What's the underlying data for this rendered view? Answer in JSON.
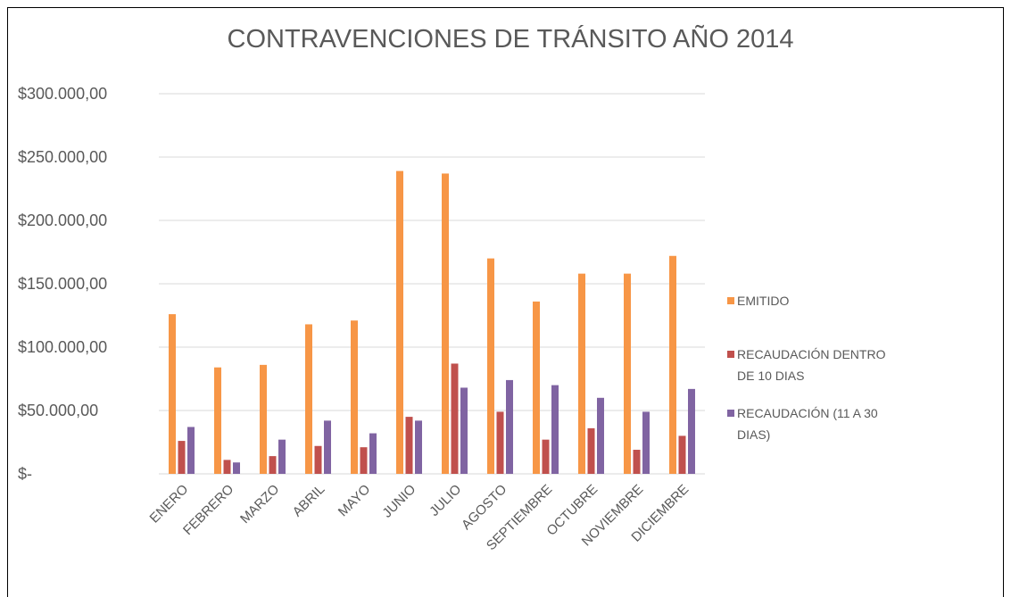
{
  "chart_data": {
    "type": "bar",
    "title": "CONTRAVENCIONES DE TRÁNSITO AÑO 2014",
    "categories": [
      "ENERO",
      "FEBRERO",
      "MARZO",
      "ABRIL",
      "MAYO",
      "JUNIO",
      "JULIO",
      "AGOSTO",
      "SEPTIEMBRE",
      "OCTUBRE",
      "NOVIEMBRE",
      "DICIEMBRE"
    ],
    "series": [
      {
        "name": "EMITIDO",
        "color": "#f79646",
        "values": [
          126000,
          84000,
          86000,
          118000,
          121000,
          239000,
          237000,
          170000,
          136000,
          158000,
          158000,
          172000
        ]
      },
      {
        "name": "RECAUDACIÓN DENTRO DE 10 DIAS",
        "color": "#c0504d",
        "values": [
          26000,
          11000,
          14000,
          22000,
          21000,
          45000,
          87000,
          49000,
          27000,
          36000,
          19000,
          30000
        ]
      },
      {
        "name": "RECAUDACIÓN (11 A 30 DIAS)",
        "color": "#8064a2",
        "values": [
          37000,
          9000,
          27000,
          42000,
          32000,
          42000,
          68000,
          74000,
          70000,
          60000,
          49000,
          67000
        ]
      }
    ],
    "ylim": [
      0,
      300000
    ],
    "yticks": [
      {
        "value": 0,
        "label": "$-"
      },
      {
        "value": 50000,
        "label": "$50.000,00"
      },
      {
        "value": 100000,
        "label": "$100.000,00"
      },
      {
        "value": 150000,
        "label": "$150.000,00"
      },
      {
        "value": 200000,
        "label": "$200.000,00"
      },
      {
        "value": 250000,
        "label": "$250.000,00"
      },
      {
        "value": 300000,
        "label": "$300.000,00"
      }
    ],
    "grid": true,
    "legend": "right"
  }
}
